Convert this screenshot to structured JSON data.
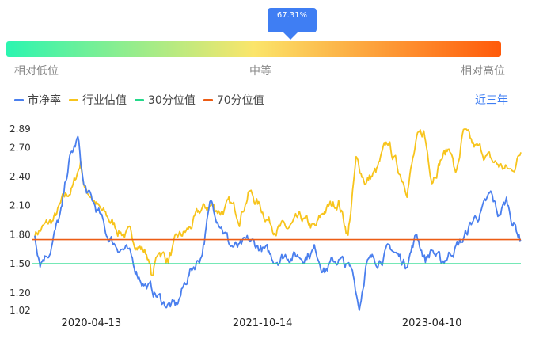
{
  "gauge": {
    "value_label": "67.31%",
    "value": 0.6731,
    "low_label": "相对低位",
    "mid_label": "中等",
    "high_label": "相对高位",
    "colors": [
      "#2bf5b0",
      "#fbe56a",
      "#ff5a0a"
    ]
  },
  "legend": {
    "items": [
      {
        "label": "市净率",
        "color": "#4a7fee"
      },
      {
        "label": "行业估值",
        "color": "#f7c41c"
      },
      {
        "label": "30分位值",
        "color": "#23d98a"
      },
      {
        "label": "70分位值",
        "color": "#ec5c14"
      }
    ]
  },
  "range_label": "近三年",
  "chart_data": {
    "type": "line",
    "x_ticks": [
      "2020-04-13",
      "2021-10-14",
      "2023-04-10"
    ],
    "y_ticks": [
      "2.89",
      "2.70",
      "2.40",
      "2.10",
      "1.80",
      "1.50",
      "1.20",
      "1.02"
    ],
    "ylim": [
      1.02,
      2.89
    ],
    "xlim": [
      "2019-10-15",
      "2024-01-20"
    ],
    "reference_lines": [
      {
        "name": "30分位值",
        "value": 1.5,
        "color": "#23d98a"
      },
      {
        "name": "70分位值",
        "value": 1.75,
        "color": "#ec5c14"
      }
    ],
    "series": [
      {
        "name": "市净率",
        "color": "#4a7fee",
        "points": [
          [
            "2019-10-15",
            1.8
          ],
          [
            "2019-11-01",
            1.55
          ],
          [
            "2019-12-01",
            1.65
          ],
          [
            "2020-01-10",
            2.05
          ],
          [
            "2020-02-01",
            2.55
          ],
          [
            "2020-03-01",
            2.78
          ],
          [
            "2020-03-20",
            2.3
          ],
          [
            "2020-04-13",
            2.15
          ],
          [
            "2020-05-10",
            2.0
          ],
          [
            "2020-06-01",
            1.8
          ],
          [
            "2020-07-01",
            1.7
          ],
          [
            "2020-08-01",
            1.65
          ],
          [
            "2020-09-01",
            1.45
          ],
          [
            "2020-10-01",
            1.3
          ],
          [
            "2020-11-01",
            1.2
          ],
          [
            "2020-12-01",
            1.1
          ],
          [
            "2021-01-10",
            1.05
          ],
          [
            "2021-02-20",
            1.4
          ],
          [
            "2021-04-01",
            1.6
          ],
          [
            "2021-05-01",
            2.12
          ],
          [
            "2021-06-01",
            1.95
          ],
          [
            "2021-07-01",
            1.7
          ],
          [
            "2021-08-01",
            1.65
          ],
          [
            "2021-09-01",
            1.72
          ],
          [
            "2021-10-14",
            1.65
          ],
          [
            "2021-11-15",
            1.55
          ],
          [
            "2022-01-01",
            1.6
          ],
          [
            "2022-02-15",
            1.58
          ],
          [
            "2022-04-01",
            1.65
          ],
          [
            "2022-05-01",
            1.45
          ],
          [
            "2022-06-15",
            1.55
          ],
          [
            "2022-08-01",
            1.4
          ],
          [
            "2022-08-20",
            1.05
          ],
          [
            "2022-09-10",
            1.5
          ],
          [
            "2022-10-15",
            1.55
          ],
          [
            "2022-12-01",
            1.65
          ],
          [
            "2023-01-15",
            1.5
          ],
          [
            "2023-02-20",
            1.8
          ],
          [
            "2023-03-20",
            1.55
          ],
          [
            "2023-04-10",
            1.65
          ],
          [
            "2023-05-10",
            1.5
          ],
          [
            "2023-06-15",
            1.65
          ],
          [
            "2023-07-20",
            1.75
          ],
          [
            "2023-08-20",
            1.95
          ],
          [
            "2023-09-20",
            2.05
          ],
          [
            "2023-10-15",
            2.2
          ],
          [
            "2023-11-10",
            2.0
          ],
          [
            "2023-12-05",
            2.15
          ],
          [
            "2023-12-25",
            1.95
          ],
          [
            "2024-01-20",
            1.75
          ]
        ]
      },
      {
        "name": "行业估值",
        "color": "#f7c41c",
        "points": [
          [
            "2019-10-15",
            1.82
          ],
          [
            "2019-11-15",
            1.88
          ],
          [
            "2019-12-15",
            1.95
          ],
          [
            "2020-01-15",
            2.15
          ],
          [
            "2020-02-15",
            2.3
          ],
          [
            "2020-03-10",
            2.55
          ],
          [
            "2020-03-25",
            2.25
          ],
          [
            "2020-04-13",
            2.22
          ],
          [
            "2020-05-10",
            2.05
          ],
          [
            "2020-06-10",
            1.95
          ],
          [
            "2020-07-10",
            1.85
          ],
          [
            "2020-08-10",
            1.8
          ],
          [
            "2020-09-10",
            1.7
          ],
          [
            "2020-10-10",
            1.6
          ],
          [
            "2020-10-25",
            1.35
          ],
          [
            "2020-11-15",
            1.65
          ],
          [
            "2020-12-15",
            1.55
          ],
          [
            "2021-01-15",
            1.75
          ],
          [
            "2021-02-20",
            1.85
          ],
          [
            "2021-04-01",
            2.05
          ],
          [
            "2021-05-01",
            2.1
          ],
          [
            "2021-06-01",
            2.05
          ],
          [
            "2021-07-01",
            2.1
          ],
          [
            "2021-08-01",
            2.0
          ],
          [
            "2021-09-01",
            2.25
          ],
          [
            "2021-10-14",
            2.05
          ],
          [
            "2021-11-15",
            1.9
          ],
          [
            "2022-01-01",
            1.85
          ],
          [
            "2022-02-15",
            1.95
          ],
          [
            "2022-04-01",
            1.85
          ],
          [
            "2022-05-01",
            2.05
          ],
          [
            "2022-06-15",
            2.15
          ],
          [
            "2022-07-15",
            1.8
          ],
          [
            "2022-08-10",
            2.55
          ],
          [
            "2022-09-10",
            2.35
          ],
          [
            "2022-10-15",
            2.45
          ],
          [
            "2022-11-20",
            2.75
          ],
          [
            "2022-12-20",
            2.5
          ],
          [
            "2023-01-20",
            2.3
          ],
          [
            "2023-02-20",
            2.75
          ],
          [
            "2023-03-15",
            2.85
          ],
          [
            "2023-04-10",
            2.4
          ],
          [
            "2023-05-10",
            2.6
          ],
          [
            "2023-06-10",
            2.7
          ],
          [
            "2023-06-25",
            2.4
          ],
          [
            "2023-07-20",
            2.85
          ],
          [
            "2023-08-20",
            2.7
          ],
          [
            "2023-09-20",
            2.65
          ],
          [
            "2023-10-20",
            2.55
          ],
          [
            "2023-11-20",
            2.5
          ],
          [
            "2023-12-20",
            2.45
          ],
          [
            "2024-01-20",
            2.65
          ]
        ]
      }
    ]
  }
}
